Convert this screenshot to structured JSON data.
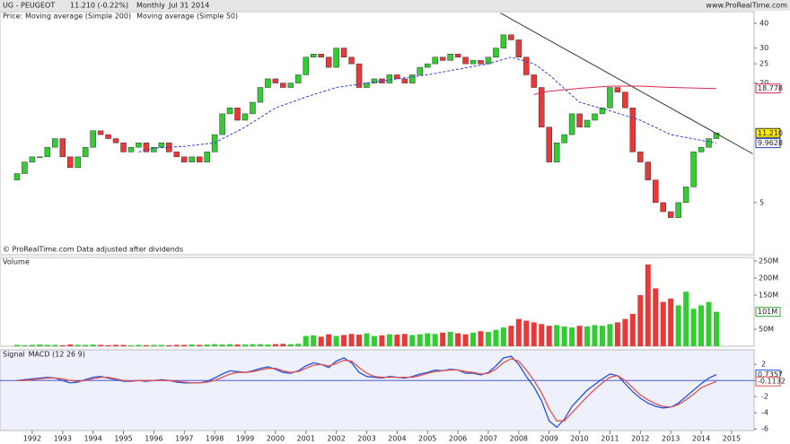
{
  "chart_data": {
    "type": "candlestick",
    "header": {
      "symbol": "UG - PEUGEOT",
      "quote": "11.210 (-0.22%)",
      "period": "Monthly",
      "date": "Jul 31 2014",
      "site": "www.ProRealTime.com"
    },
    "price_label": "Price:",
    "footnote": "© ProRealTime.com  Data adjusted after dividends",
    "log_scale": true,
    "xlim": [
      1990.94,
      2015.74
    ],
    "ylim": [
      2.76,
      45.3
    ],
    "xticks": [
      1992,
      1993,
      1994,
      1995,
      1996,
      1997,
      1998,
      1999,
      2000,
      2001,
      2002,
      2003,
      2004,
      2005,
      2006,
      2007,
      2008,
      2009,
      2010,
      2011,
      2012,
      2013,
      2014,
      2015
    ],
    "yticks": [
      5,
      20,
      25,
      30,
      40
    ],
    "up_color": "#33cc33",
    "down_color": "#e83838",
    "last_label": "11.210",
    "x": [
      1991.5,
      1991.75,
      1992,
      1992.25,
      1992.5,
      1992.75,
      1993,
      1993.25,
      1993.5,
      1993.75,
      1994,
      1994.25,
      1994.5,
      1994.75,
      1995,
      1995.25,
      1995.5,
      1995.75,
      1996,
      1996.25,
      1996.5,
      1996.75,
      1997,
      1997.25,
      1997.5,
      1997.75,
      1998,
      1998.25,
      1998.5,
      1998.75,
      1999,
      1999.25,
      1999.5,
      1999.75,
      2000,
      2000.25,
      2000.5,
      2000.75,
      2001,
      2001.25,
      2001.5,
      2001.75,
      2002,
      2002.25,
      2002.5,
      2002.75,
      2003,
      2003.25,
      2003.5,
      2003.75,
      2004,
      2004.25,
      2004.5,
      2004.75,
      2005,
      2005.25,
      2005.5,
      2005.75,
      2006,
      2006.25,
      2006.5,
      2006.75,
      2007,
      2007.25,
      2007.5,
      2007.75,
      2008,
      2008.25,
      2008.5,
      2008.75,
      2009,
      2009.25,
      2009.5,
      2009.75,
      2010,
      2010.25,
      2010.5,
      2010.75,
      2011,
      2011.25,
      2011.5,
      2011.75,
      2012,
      2012.25,
      2012.5,
      2012.75,
      2013,
      2013.25,
      2013.5,
      2013.75,
      2014,
      2014.25,
      2014.5
    ],
    "open": [
      6.5,
      7,
      8,
      8.5,
      8.5,
      9.5,
      10.5,
      8.5,
      7.5,
      8.5,
      9.5,
      11.5,
      11,
      10.5,
      10,
      9,
      9.5,
      10,
      9,
      9.5,
      10,
      9,
      8.5,
      8,
      8.5,
      8,
      9,
      11,
      14,
      15,
      13,
      14,
      16,
      19,
      21,
      20,
      19,
      20,
      22,
      27,
      28,
      27,
      24,
      30,
      27,
      25,
      19,
      20,
      21,
      20,
      22,
      21,
      20,
      22,
      24,
      25,
      27,
      26,
      28,
      27,
      25,
      26,
      25,
      27,
      30,
      35,
      33,
      27,
      22,
      19,
      12,
      8,
      10,
      11,
      14,
      12,
      13,
      14,
      15,
      19,
      18,
      15,
      9,
      8,
      6.5,
      5,
      4.5,
      4.2,
      5,
      6,
      9,
      9.5,
      10.5
    ],
    "close": [
      7,
      8,
      8.5,
      8.5,
      9.5,
      10.5,
      8.5,
      7.5,
      8.5,
      9.5,
      11.5,
      11,
      10.5,
      10,
      9,
      9.5,
      10,
      9,
      9.5,
      10,
      9,
      8.5,
      8,
      8.5,
      8,
      9,
      11,
      14,
      15,
      13,
      14,
      16,
      19,
      21,
      20,
      19,
      20,
      22,
      27,
      28,
      27,
      24,
      30,
      27,
      25,
      19,
      20,
      21,
      20,
      22,
      21,
      20,
      22,
      24,
      25,
      27,
      26,
      28,
      27,
      25,
      26,
      25,
      27,
      30,
      35,
      33,
      27,
      22,
      19,
      12,
      8,
      10,
      11,
      14,
      12,
      13,
      14,
      15,
      19,
      18,
      15,
      9,
      8,
      6.5,
      5,
      4.5,
      4.2,
      5,
      6,
      9,
      9.5,
      10.5,
      11.21
    ],
    "series": [
      {
        "name": "Moving average (Simple 200)",
        "color": "#e0284a",
        "dashed": false,
        "last_label": "18.778",
        "x": [
          2008.5,
          2009,
          2010,
          2011,
          2012,
          2013,
          2014.5
        ],
        "values": [
          17.5,
          18.2,
          18.8,
          19.3,
          19.3,
          19.0,
          18.778
        ]
      },
      {
        "name": "Moving average (Simple 50)",
        "color": "#3040d0",
        "dashed": true,
        "last_label": "9.9628",
        "x": [
          1995.5,
          1996,
          1997,
          1998,
          1999,
          2000,
          2001,
          2002,
          2003,
          2004,
          2005,
          2006,
          2007,
          2007.75,
          2008.5,
          2009,
          2010,
          2011,
          2012,
          2013,
          2014.5
        ],
        "values": [
          9,
          9.4,
          9.6,
          10,
          12,
          15,
          17,
          19,
          20,
          21,
          22,
          23.5,
          25,
          27,
          25,
          22,
          16,
          14.5,
          13,
          11,
          9.9628
        ]
      }
    ],
    "trendline": {
      "color": "#333333",
      "x": [
        2007.4,
        2015.7
      ],
      "values": [
        45,
        8.8
      ]
    },
    "volume": {
      "title": "Volume",
      "color": "#33cc33",
      "down_color": "#e83838",
      "ylim": [
        0,
        258
      ],
      "last_label": "101M",
      "yticks": [
        {
          "value": 50,
          "label": "50M"
        },
        {
          "value": 150,
          "label": "150M"
        },
        {
          "value": 200,
          "label": "200M"
        },
        {
          "value": 250,
          "label": "250M"
        }
      ],
      "values": [
        4,
        3,
        4,
        5,
        4,
        4,
        3,
        5,
        4,
        4,
        5,
        4,
        3,
        4,
        4,
        3,
        4,
        3,
        4,
        4,
        3,
        4,
        4,
        5,
        4,
        5,
        6,
        5,
        6,
        5,
        5,
        6,
        6,
        5,
        6,
        7,
        6,
        7,
        30,
        32,
        28,
        35,
        30,
        33,
        36,
        34,
        38,
        30,
        32,
        35,
        34,
        36,
        33,
        35,
        38,
        36,
        40,
        42,
        38,
        35,
        40,
        44,
        42,
        48,
        55,
        60,
        80,
        75,
        70,
        65,
        60,
        62,
        58,
        55,
        60,
        58,
        62,
        60,
        65,
        70,
        80,
        95,
        150,
        240,
        170,
        130,
        140,
        120,
        160,
        110,
        120,
        130,
        101
      ]
    },
    "macd": {
      "ylim": [
        -6.2,
        3.8
      ],
      "yticks": [
        -6,
        -4,
        -2,
        0,
        2
      ],
      "series": [
        {
          "name": "MACD (12 26 9)",
          "color": "#2255dd",
          "last_label": "0.7357",
          "values": [
            0,
            0.1,
            0.2,
            0.3,
            0.4,
            0.3,
            0,
            -0.3,
            -0.2,
            0.1,
            0.4,
            0.5,
            0.3,
            0.1,
            -0.1,
            -0.1,
            0,
            -0.1,
            0,
            0.1,
            0,
            -0.2,
            -0.3,
            -0.3,
            -0.3,
            -0.1,
            0.3,
            0.8,
            1.2,
            1.1,
            1.0,
            1.2,
            1.5,
            1.7,
            1.4,
            1.0,
            0.9,
            1.2,
            1.8,
            2.2,
            2.0,
            1.6,
            2.4,
            2.8,
            2.2,
            1.0,
            0.5,
            0.4,
            0.3,
            0.5,
            0.4,
            0.3,
            0.5,
            0.8,
            1.0,
            1.3,
            1.2,
            1.4,
            1.3,
            0.9,
            0.9,
            0.7,
            1.0,
            1.8,
            2.8,
            3.0,
            2.0,
            0.5,
            -0.8,
            -2.5,
            -5.0,
            -5.8,
            -4.8,
            -3.2,
            -2.2,
            -1.2,
            -0.5,
            0.2,
            0.8,
            0.6,
            -0.4,
            -1.4,
            -2.2,
            -2.8,
            -3.2,
            -3.4,
            -3.3,
            -2.8,
            -2.0,
            -1.2,
            -0.4,
            0.3,
            0.7357
          ]
        },
        {
          "name": "Signal",
          "color": "#e05050",
          "last_label": "-0.1132",
          "values": [
            0,
            0,
            0.1,
            0.2,
            0.3,
            0.3,
            0.2,
            0,
            -0.1,
            0,
            0.2,
            0.4,
            0.4,
            0.2,
            0,
            -0.1,
            0,
            0,
            0,
            0,
            0,
            -0.1,
            -0.2,
            -0.3,
            -0.3,
            -0.2,
            0,
            0.4,
            0.8,
            1.0,
            1.0,
            1.1,
            1.3,
            1.5,
            1.5,
            1.2,
            1.0,
            1.1,
            1.5,
            1.9,
            2.0,
            1.8,
            2.1,
            2.5,
            2.4,
            1.6,
            0.9,
            0.5,
            0.4,
            0.4,
            0.4,
            0.4,
            0.4,
            0.6,
            0.9,
            1.1,
            1.2,
            1.3,
            1.3,
            1.1,
            1.0,
            0.8,
            0.9,
            1.4,
            2.2,
            2.7,
            2.4,
            1.3,
            0,
            -1.5,
            -3.5,
            -5.0,
            -5.0,
            -4.0,
            -3.0,
            -2.0,
            -1.1,
            -0.3,
            0.4,
            0.6,
            0,
            -0.9,
            -1.8,
            -2.4,
            -2.9,
            -3.2,
            -3.3,
            -3.0,
            -2.4,
            -1.7,
            -0.9,
            -0.5,
            -0.1132
          ]
        }
      ]
    }
  }
}
